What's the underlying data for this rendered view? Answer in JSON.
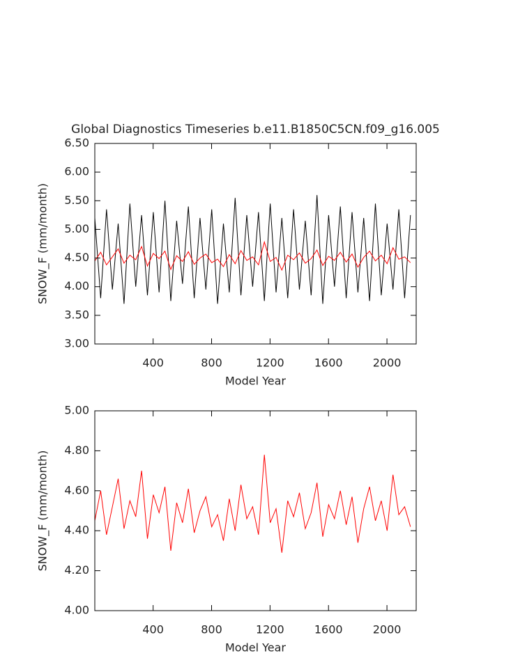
{
  "chart_data": [
    {
      "type": "line",
      "title": "Global Diagnostics Timeseries b.e11.B1850C5CN.f09_g16.005",
      "xlabel": "Model Year",
      "ylabel": "SNOW_F (mm/month)",
      "xlim": [
        1,
        2200
      ],
      "xticks": [
        400,
        800,
        1200,
        1600,
        2000
      ],
      "ylim": [
        3,
        6.5
      ],
      "yticks": [
        {
          "value": 3,
          "label": "3.00"
        },
        {
          "value": 3.5,
          "label": "3.50"
        },
        {
          "value": 4,
          "label": "4.00"
        },
        {
          "value": 4.5,
          "label": "4.50"
        },
        {
          "value": 5,
          "label": "5.00"
        },
        {
          "value": 5.5,
          "label": "5.50"
        },
        {
          "value": 6,
          "label": "6.00"
        },
        {
          "value": 6.5,
          "label": "6.50"
        }
      ],
      "x": [
        1,
        41,
        81,
        121,
        161,
        201,
        241,
        281,
        321,
        361,
        401,
        441,
        481,
        521,
        561,
        601,
        641,
        681,
        721,
        761,
        801,
        841,
        881,
        921,
        961,
        1001,
        1041,
        1081,
        1121,
        1161,
        1201,
        1241,
        1281,
        1321,
        1361,
        1401,
        1441,
        1481,
        1521,
        1561,
        1601,
        1641,
        1681,
        1721,
        1761,
        1801,
        1841,
        1881,
        1921,
        1961,
        2001,
        2041,
        2081,
        2121,
        2161
      ],
      "series": [
        {
          "color": "#000000",
          "values": [
            5.2,
            3.8,
            5.35,
            3.95,
            5.1,
            3.7,
            5.45,
            4.0,
            5.25,
            3.85,
            5.3,
            3.9,
            5.5,
            3.75,
            5.15,
            4.05,
            5.4,
            3.8,
            5.2,
            3.95,
            5.35,
            3.7,
            5.1,
            3.9,
            5.55,
            3.85,
            5.25,
            4.0,
            5.3,
            3.75,
            5.45,
            3.9,
            5.2,
            3.8,
            5.35,
            3.95,
            5.15,
            3.85,
            5.6,
            3.7,
            5.25,
            4.0,
            5.4,
            3.8,
            5.3,
            3.9,
            5.2,
            3.75,
            5.45,
            3.85,
            5.1,
            3.95,
            5.35,
            3.8,
            5.25
          ]
        },
        {
          "color": "#ff0000",
          "values": [
            4.45,
            4.6,
            4.38,
            4.52,
            4.66,
            4.41,
            4.55,
            4.47,
            4.7,
            4.36,
            4.58,
            4.49,
            4.62,
            4.3,
            4.54,
            4.44,
            4.61,
            4.39,
            4.5,
            4.57,
            4.42,
            4.48,
            4.35,
            4.56,
            4.4,
            4.63,
            4.46,
            4.52,
            4.38,
            4.78,
            4.44,
            4.51,
            4.29,
            4.55,
            4.47,
            4.59,
            4.41,
            4.49,
            4.64,
            4.37,
            4.53,
            4.46,
            4.6,
            4.43,
            4.57,
            4.34,
            4.51,
            4.62,
            4.45,
            4.55,
            4.4,
            4.68,
            4.48,
            4.52,
            4.42
          ]
        }
      ]
    },
    {
      "type": "line",
      "xlabel": "Model Year",
      "ylabel": "SNOW_F (mm/month)",
      "xlim": [
        1,
        2200
      ],
      "xticks": [
        400,
        800,
        1200,
        1600,
        2000
      ],
      "ylim": [
        4,
        5
      ],
      "yticks": [
        {
          "value": 4,
          "label": "4.00"
        },
        {
          "value": 4.2,
          "label": "4.20"
        },
        {
          "value": 4.4,
          "label": "4.40"
        },
        {
          "value": 4.6,
          "label": "4.60"
        },
        {
          "value": 4.8,
          "label": "4.80"
        },
        {
          "value": 5,
          "label": "5.00"
        }
      ],
      "x": [
        1,
        41,
        81,
        121,
        161,
        201,
        241,
        281,
        321,
        361,
        401,
        441,
        481,
        521,
        561,
        601,
        641,
        681,
        721,
        761,
        801,
        841,
        881,
        921,
        961,
        1001,
        1041,
        1081,
        1121,
        1161,
        1201,
        1241,
        1281,
        1321,
        1361,
        1401,
        1441,
        1481,
        1521,
        1561,
        1601,
        1641,
        1681,
        1721,
        1761,
        1801,
        1841,
        1881,
        1921,
        1961,
        2001,
        2041,
        2081,
        2121,
        2161
      ],
      "series": [
        {
          "color": "#ff0000",
          "values": [
            4.45,
            4.6,
            4.38,
            4.52,
            4.66,
            4.41,
            4.55,
            4.47,
            4.7,
            4.36,
            4.58,
            4.49,
            4.62,
            4.3,
            4.54,
            4.44,
            4.61,
            4.39,
            4.5,
            4.57,
            4.42,
            4.48,
            4.35,
            4.56,
            4.4,
            4.63,
            4.46,
            4.52,
            4.38,
            4.78,
            4.44,
            4.51,
            4.29,
            4.55,
            4.47,
            4.59,
            4.41,
            4.49,
            4.64,
            4.37,
            4.53,
            4.46,
            4.6,
            4.43,
            4.57,
            4.34,
            4.51,
            4.62,
            4.45,
            4.55,
            4.4,
            4.68,
            4.48,
            4.52,
            4.42
          ]
        }
      ]
    }
  ]
}
